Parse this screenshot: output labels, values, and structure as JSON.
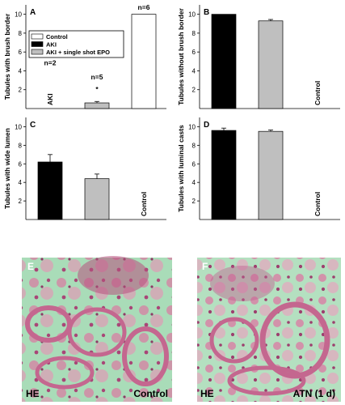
{
  "colors": {
    "control": "#ffffff",
    "aki": "#000000",
    "aki_epo": "#bfbfbf",
    "tissue_bg": "#a9dcb8",
    "tissue_pink": "#d87fa3",
    "tissue_dark": "#a84677"
  },
  "legend": {
    "items": [
      {
        "label": "Control",
        "color": "#ffffff"
      },
      {
        "label": "AKI",
        "color": "#000000"
      },
      {
        "label": "AKI + single shot EPO",
        "color": "#bfbfbf"
      }
    ]
  },
  "chart_data": [
    {
      "panel": "A",
      "type": "bar",
      "ylabel": "Tubules with brush border",
      "ylim": [
        0,
        11
      ],
      "yticks": [
        2,
        4,
        6,
        8,
        10
      ],
      "categories": [
        "AKI",
        "AKI + single shot EPO",
        "Control"
      ],
      "values": [
        0,
        0.6,
        10
      ],
      "errors": [
        0,
        0.15,
        0
      ],
      "bar_labels": [
        "AKI",
        "",
        ""
      ],
      "counts": [
        "n=2",
        "n=5",
        "n=6"
      ],
      "annotations": [
        "",
        "*",
        ""
      ]
    },
    {
      "panel": "B",
      "type": "bar",
      "ylabel": "Tubules without brush border",
      "ylim": [
        0,
        11
      ],
      "yticks": [
        2,
        4,
        6,
        8,
        10
      ],
      "categories": [
        "AKI",
        "AKI + single shot EPO",
        "Control"
      ],
      "values": [
        10,
        9.3,
        0
      ],
      "errors": [
        0,
        0.15,
        0
      ],
      "bar_labels": [
        "",
        "",
        "Control"
      ]
    },
    {
      "panel": "C",
      "type": "bar",
      "ylabel": "Tubules with wide lumen",
      "ylim": [
        0,
        11
      ],
      "yticks": [
        2,
        4,
        6,
        8,
        10
      ],
      "categories": [
        "AKI",
        "AKI + single shot EPO",
        "Control"
      ],
      "values": [
        6.2,
        4.4,
        0
      ],
      "errors": [
        0.8,
        0.5,
        0
      ],
      "bar_labels": [
        "",
        "",
        "Control"
      ]
    },
    {
      "panel": "D",
      "type": "bar",
      "ylabel": "Tubules with luminal casts",
      "ylim": [
        0,
        11
      ],
      "yticks": [
        2,
        4,
        6,
        8,
        10
      ],
      "categories": [
        "AKI",
        "AKI + single shot EPO",
        "Control"
      ],
      "values": [
        9.6,
        9.5,
        0
      ],
      "errors": [
        0.25,
        0.15,
        0
      ],
      "bar_labels": [
        "",
        "",
        "Control"
      ]
    }
  ],
  "micrographs": [
    {
      "panel": "E",
      "stain": "HE",
      "label": "Control"
    },
    {
      "panel": "F",
      "stain": "HE",
      "label": "ATN (1 d)"
    }
  ]
}
